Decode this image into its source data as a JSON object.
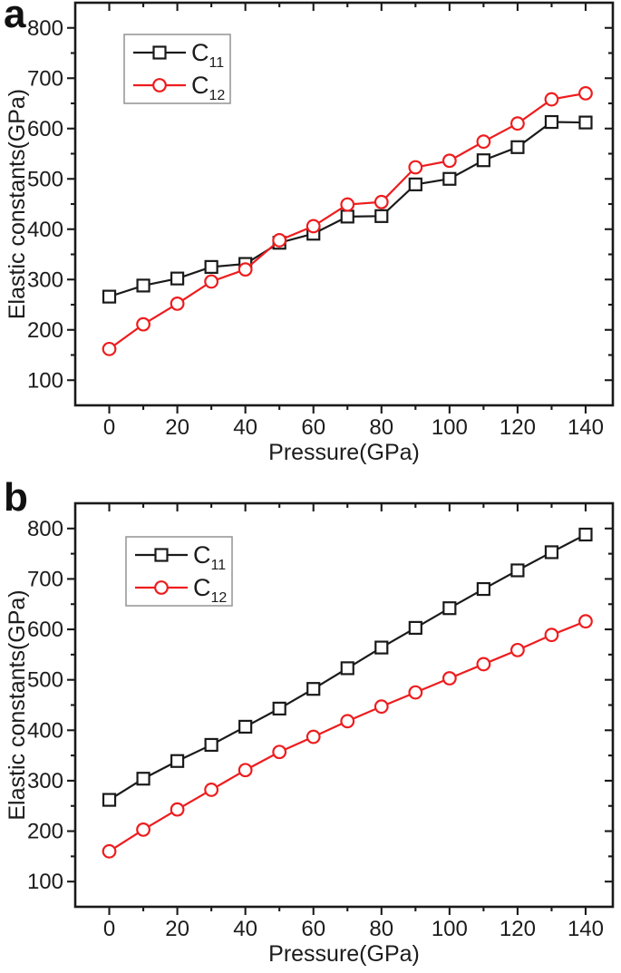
{
  "figure": {
    "background": "#ffffff",
    "text_color": "#1c1c1c",
    "frame_color": "#1a1a1a",
    "legend_border_color": "#999999"
  },
  "panels": [
    {
      "label": "a"
    },
    {
      "label": "b"
    }
  ],
  "chart_data": [
    {
      "type": "line",
      "panel": "a",
      "title": "",
      "xlabel": "Pressure(GPa)",
      "ylabel": "Elastic constants(GPa)",
      "xlim": [
        -10,
        148
      ],
      "ylim": [
        50,
        850
      ],
      "x_major_step": 20,
      "x_minor_step": 10,
      "y_major_step": 100,
      "y_minor_step": 50,
      "grid": false,
      "legend_position": "upper-left",
      "x": [
        0,
        10,
        20,
        30,
        40,
        50,
        60,
        70,
        80,
        90,
        100,
        110,
        120,
        130,
        140
      ],
      "series": [
        {
          "name": "C11",
          "label_main": "C",
          "label_sub": "11",
          "marker": "square",
          "color": "#1a1a1a",
          "values": [
            266,
            288,
            302,
            325,
            331,
            373,
            391,
            425,
            426,
            489,
            500,
            537,
            563,
            613,
            612
          ]
        },
        {
          "name": "C12",
          "label_main": "C",
          "label_sub": "12",
          "marker": "circle",
          "color": "#ee1c1e",
          "values": [
            162,
            211,
            252,
            296,
            320,
            378,
            406,
            449,
            454,
            523,
            536,
            574,
            610,
            658,
            670
          ]
        }
      ]
    },
    {
      "type": "line",
      "panel": "b",
      "title": "",
      "xlabel": "Pressure(GPa)",
      "ylabel": "Elastic constants(GPa)",
      "xlim": [
        -10,
        148
      ],
      "ylim": [
        50,
        850
      ],
      "x_major_step": 20,
      "x_minor_step": 10,
      "y_major_step": 100,
      "y_minor_step": 50,
      "grid": false,
      "legend_position": "upper-left",
      "x": [
        0,
        10,
        20,
        30,
        40,
        50,
        60,
        70,
        80,
        90,
        100,
        110,
        120,
        130,
        140
      ],
      "series": [
        {
          "name": "C11",
          "label_main": "C",
          "label_sub": "11",
          "marker": "square",
          "color": "#1a1a1a",
          "values": [
            262,
            304,
            339,
            371,
            407,
            443,
            482,
            523,
            564,
            603,
            642,
            680,
            717,
            753,
            788
          ]
        },
        {
          "name": "C12",
          "label_main": "C",
          "label_sub": "12",
          "marker": "circle",
          "color": "#ee1c1e",
          "values": [
            160,
            203,
            243,
            282,
            321,
            357,
            387,
            418,
            447,
            475,
            503,
            531,
            559,
            589,
            616
          ]
        }
      ]
    }
  ]
}
